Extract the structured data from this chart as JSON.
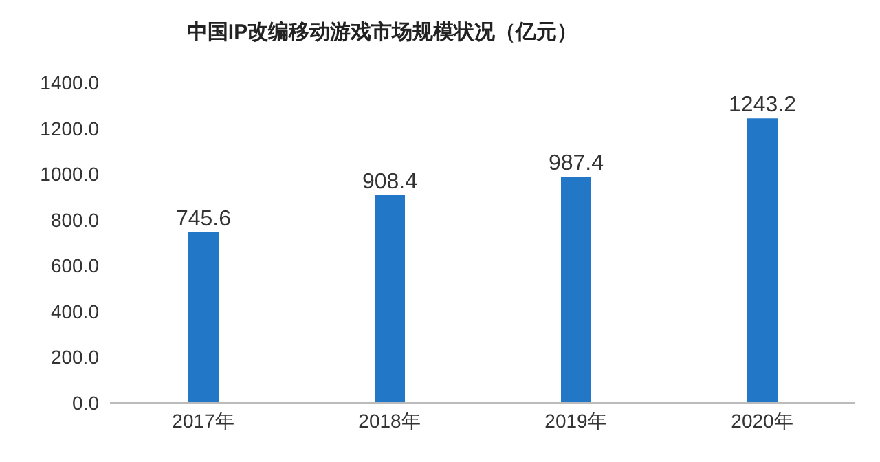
{
  "chart_data": {
    "type": "bar",
    "title": "中国IP改编移动游戏市场规模状况（亿元）",
    "categories": [
      "2017年",
      "2018年",
      "2019年",
      "2020年"
    ],
    "values": [
      745.6,
      908.4,
      987.4,
      1243.2
    ],
    "color": "#2277c7",
    "ylim": [
      0,
      1400
    ],
    "yticks": [
      {
        "value": 0,
        "label": "0.0"
      },
      {
        "value": 200,
        "label": "200.0"
      },
      {
        "value": 400,
        "label": "400.0"
      },
      {
        "value": 600,
        "label": "600.0"
      },
      {
        "value": 800,
        "label": "800.0"
      },
      {
        "value": 1000,
        "label": "1000.0"
      },
      {
        "value": 1200,
        "label": "1200.0"
      },
      {
        "value": 1400,
        "label": "1400.0"
      }
    ],
    "data_labels": true,
    "grid": false
  }
}
